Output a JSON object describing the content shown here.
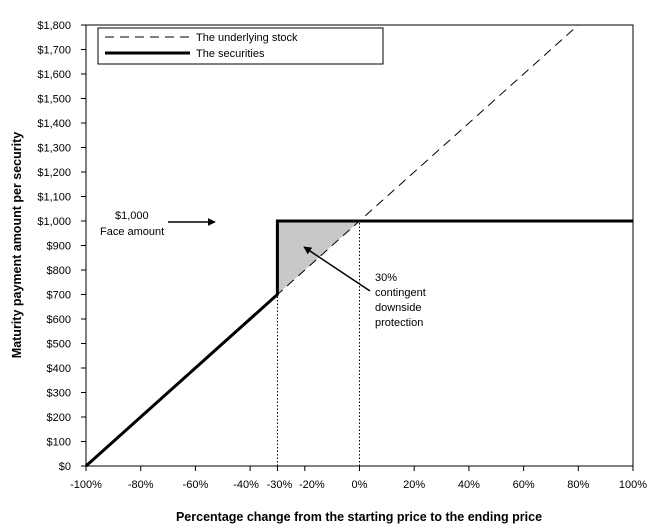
{
  "chart_data": {
    "type": "line",
    "xlabel": "Percentage change from the starting price to the ending price",
    "ylabel": "Maturity payment amount per security",
    "xlim": [
      -100,
      100
    ],
    "ylim": [
      0,
      1800
    ],
    "x_ticks": [
      -100,
      -80,
      -60,
      -40,
      -30,
      -20,
      0,
      20,
      40,
      60,
      80,
      100
    ],
    "x_tick_labels": [
      "-100%",
      "-80%",
      "-60%",
      "-40%",
      "-30%",
      "-20%",
      "0%",
      "20%",
      "40%",
      "60%",
      "80%",
      "100%"
    ],
    "y_ticks": [
      0,
      100,
      200,
      300,
      400,
      500,
      600,
      700,
      800,
      900,
      1000,
      1100,
      1200,
      1300,
      1400,
      1500,
      1600,
      1700,
      1800
    ],
    "y_tick_labels": [
      "$0",
      "$100",
      "$200",
      "$300",
      "$400",
      "$500",
      "$600",
      "$700",
      "$800",
      "$900",
      "$1,000",
      "$1,100",
      "$1,200",
      "$1,300",
      "$1,400",
      "$1,500",
      "$1,600",
      "$1,700",
      "$1,800"
    ],
    "legend_position": "top-left",
    "series": [
      {
        "name": "The underlying stock",
        "style": "dashed",
        "color": "#000000",
        "points": [
          [
            -100,
            0
          ],
          [
            80,
            1800
          ]
        ]
      },
      {
        "name": "The securities",
        "style": "solid-thick",
        "color": "#000000",
        "points": [
          [
            -100,
            0
          ],
          [
            -30,
            700
          ],
          [
            -30,
            1000
          ],
          [
            100,
            1000
          ]
        ]
      }
    ],
    "shaded_region": {
      "color": "#c8c8c8",
      "points": [
        [
          -30,
          700
        ],
        [
          -30,
          1000
        ],
        [
          0,
          1000
        ]
      ]
    },
    "reference_lines": [
      {
        "x": -30,
        "from": 0,
        "to": 700,
        "style": "dotted"
      },
      {
        "x": 0,
        "from": 0,
        "to": 1000,
        "style": "dotted"
      }
    ],
    "annotations": [
      {
        "lines": [
          "$1,000",
          "Face amount"
        ]
      },
      {
        "lines": [
          "30%",
          "contingent",
          "downside",
          "protection"
        ]
      }
    ]
  }
}
